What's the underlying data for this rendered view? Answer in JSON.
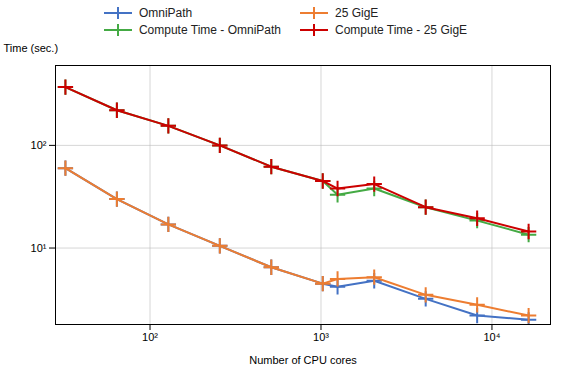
{
  "chart_data": {
    "type": "line",
    "x": [
      32,
      64,
      128,
      256,
      512,
      1024,
      1250,
      2048,
      4096,
      8192,
      16384
    ],
    "series": [
      {
        "name": "OmniPath",
        "color": "#4472C4",
        "values": [
          60,
          30,
          17,
          10.5,
          6.5,
          4.5,
          4.2,
          4.8,
          3.2,
          2.2,
          2.0
        ]
      },
      {
        "name": "25 GigE",
        "color": "#ED7D31",
        "values": [
          60,
          30,
          17,
          10.5,
          6.5,
          4.5,
          5.0,
          5.2,
          3.5,
          2.8,
          2.2
        ]
      },
      {
        "name": "Compute Time - OmniPath",
        "color": "#44AA44",
        "values": [
          370,
          220,
          155,
          100,
          62,
          45,
          33,
          38,
          25,
          18.5,
          13.5
        ]
      },
      {
        "name": "Compute Time - 25 GigE",
        "color": "#CC0000",
        "values": [
          370,
          220,
          155,
          100,
          62,
          45,
          38,
          42,
          25,
          19.5,
          14.5
        ]
      }
    ],
    "xlabel": "Number of CPU cores",
    "ylabel": "Time (sec.)",
    "log": true,
    "xlim": [
      28,
      22000
    ],
    "ylim": [
      1.8,
      600
    ],
    "xticks": [
      {
        "value": 100,
        "label": "10²"
      },
      {
        "value": 1000,
        "label": "10³"
      },
      {
        "value": 10000,
        "label": "10⁴"
      }
    ],
    "yticks": [
      {
        "value": 10,
        "label": "10¹"
      },
      {
        "value": 100,
        "label": "10²"
      }
    ],
    "grid": true,
    "legend": "top",
    "marker": "plus"
  }
}
